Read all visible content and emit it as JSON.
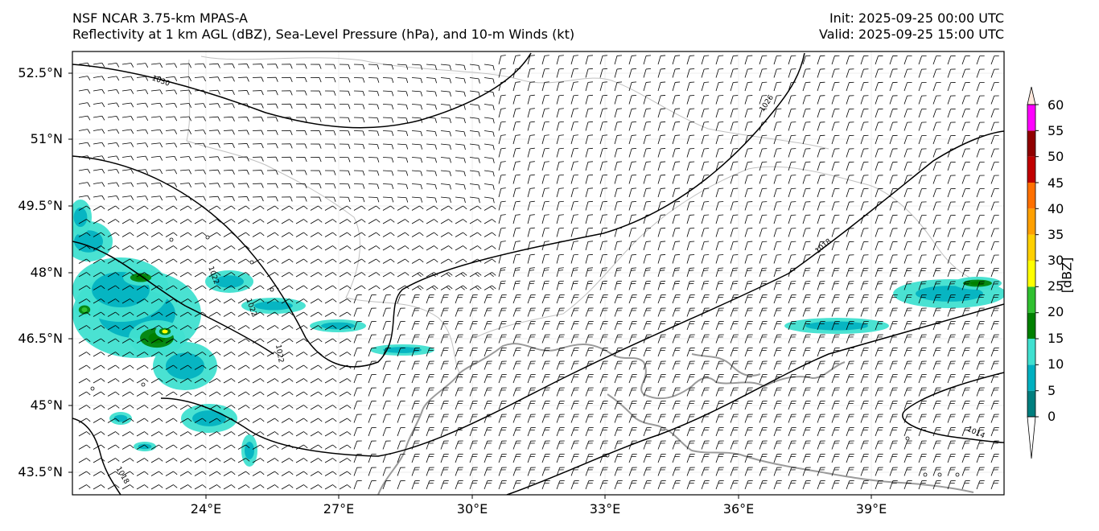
{
  "header": {
    "model_title": "NSF NCAR 3.75-km MPAS-A",
    "fields_title": "Reflectivity at 1 km AGL (dBZ), Sea-Level Pressure (hPa), and 10-m Winds (kt)",
    "init_time": "Init: 2025-09-25 00:00 UTC",
    "valid_time": "Valid: 2025-09-25 15:00 UTC"
  },
  "axes": {
    "lat_labels": [
      "52.5°N",
      "51°N",
      "49.5°N",
      "48°N",
      "46.5°N",
      "45°N",
      "43.5°N"
    ],
    "lon_labels": [
      "24°E",
      "27°E",
      "30°E",
      "33°E",
      "36°E",
      "39°E"
    ],
    "lat_range": [
      42.9,
      53.0
    ],
    "lon_range": [
      21.6,
      42.6
    ]
  },
  "contours": {
    "labels": [
      "1030",
      "1026",
      "1022",
      "1022",
      "1022",
      "1018",
      "1014",
      "1018"
    ]
  },
  "colorbar": {
    "unit": "[dBZ]",
    "ticks": [
      "0",
      "5",
      "10",
      "15",
      "20",
      "25",
      "30",
      "35",
      "40",
      "45",
      "50",
      "55",
      "60"
    ],
    "colors": [
      "#007f7f",
      "#00b0c0",
      "#40e0d0",
      "#008000",
      "#30c030",
      "#ffff00",
      "#ffd000",
      "#ffa000",
      "#ff7000",
      "#c00000",
      "#900000",
      "#ff00ff",
      "#ffe8dc"
    ]
  },
  "colors": {
    "coastline": "#9a9a9a",
    "borders": "#c0c0c0",
    "isobar": "#000000"
  }
}
